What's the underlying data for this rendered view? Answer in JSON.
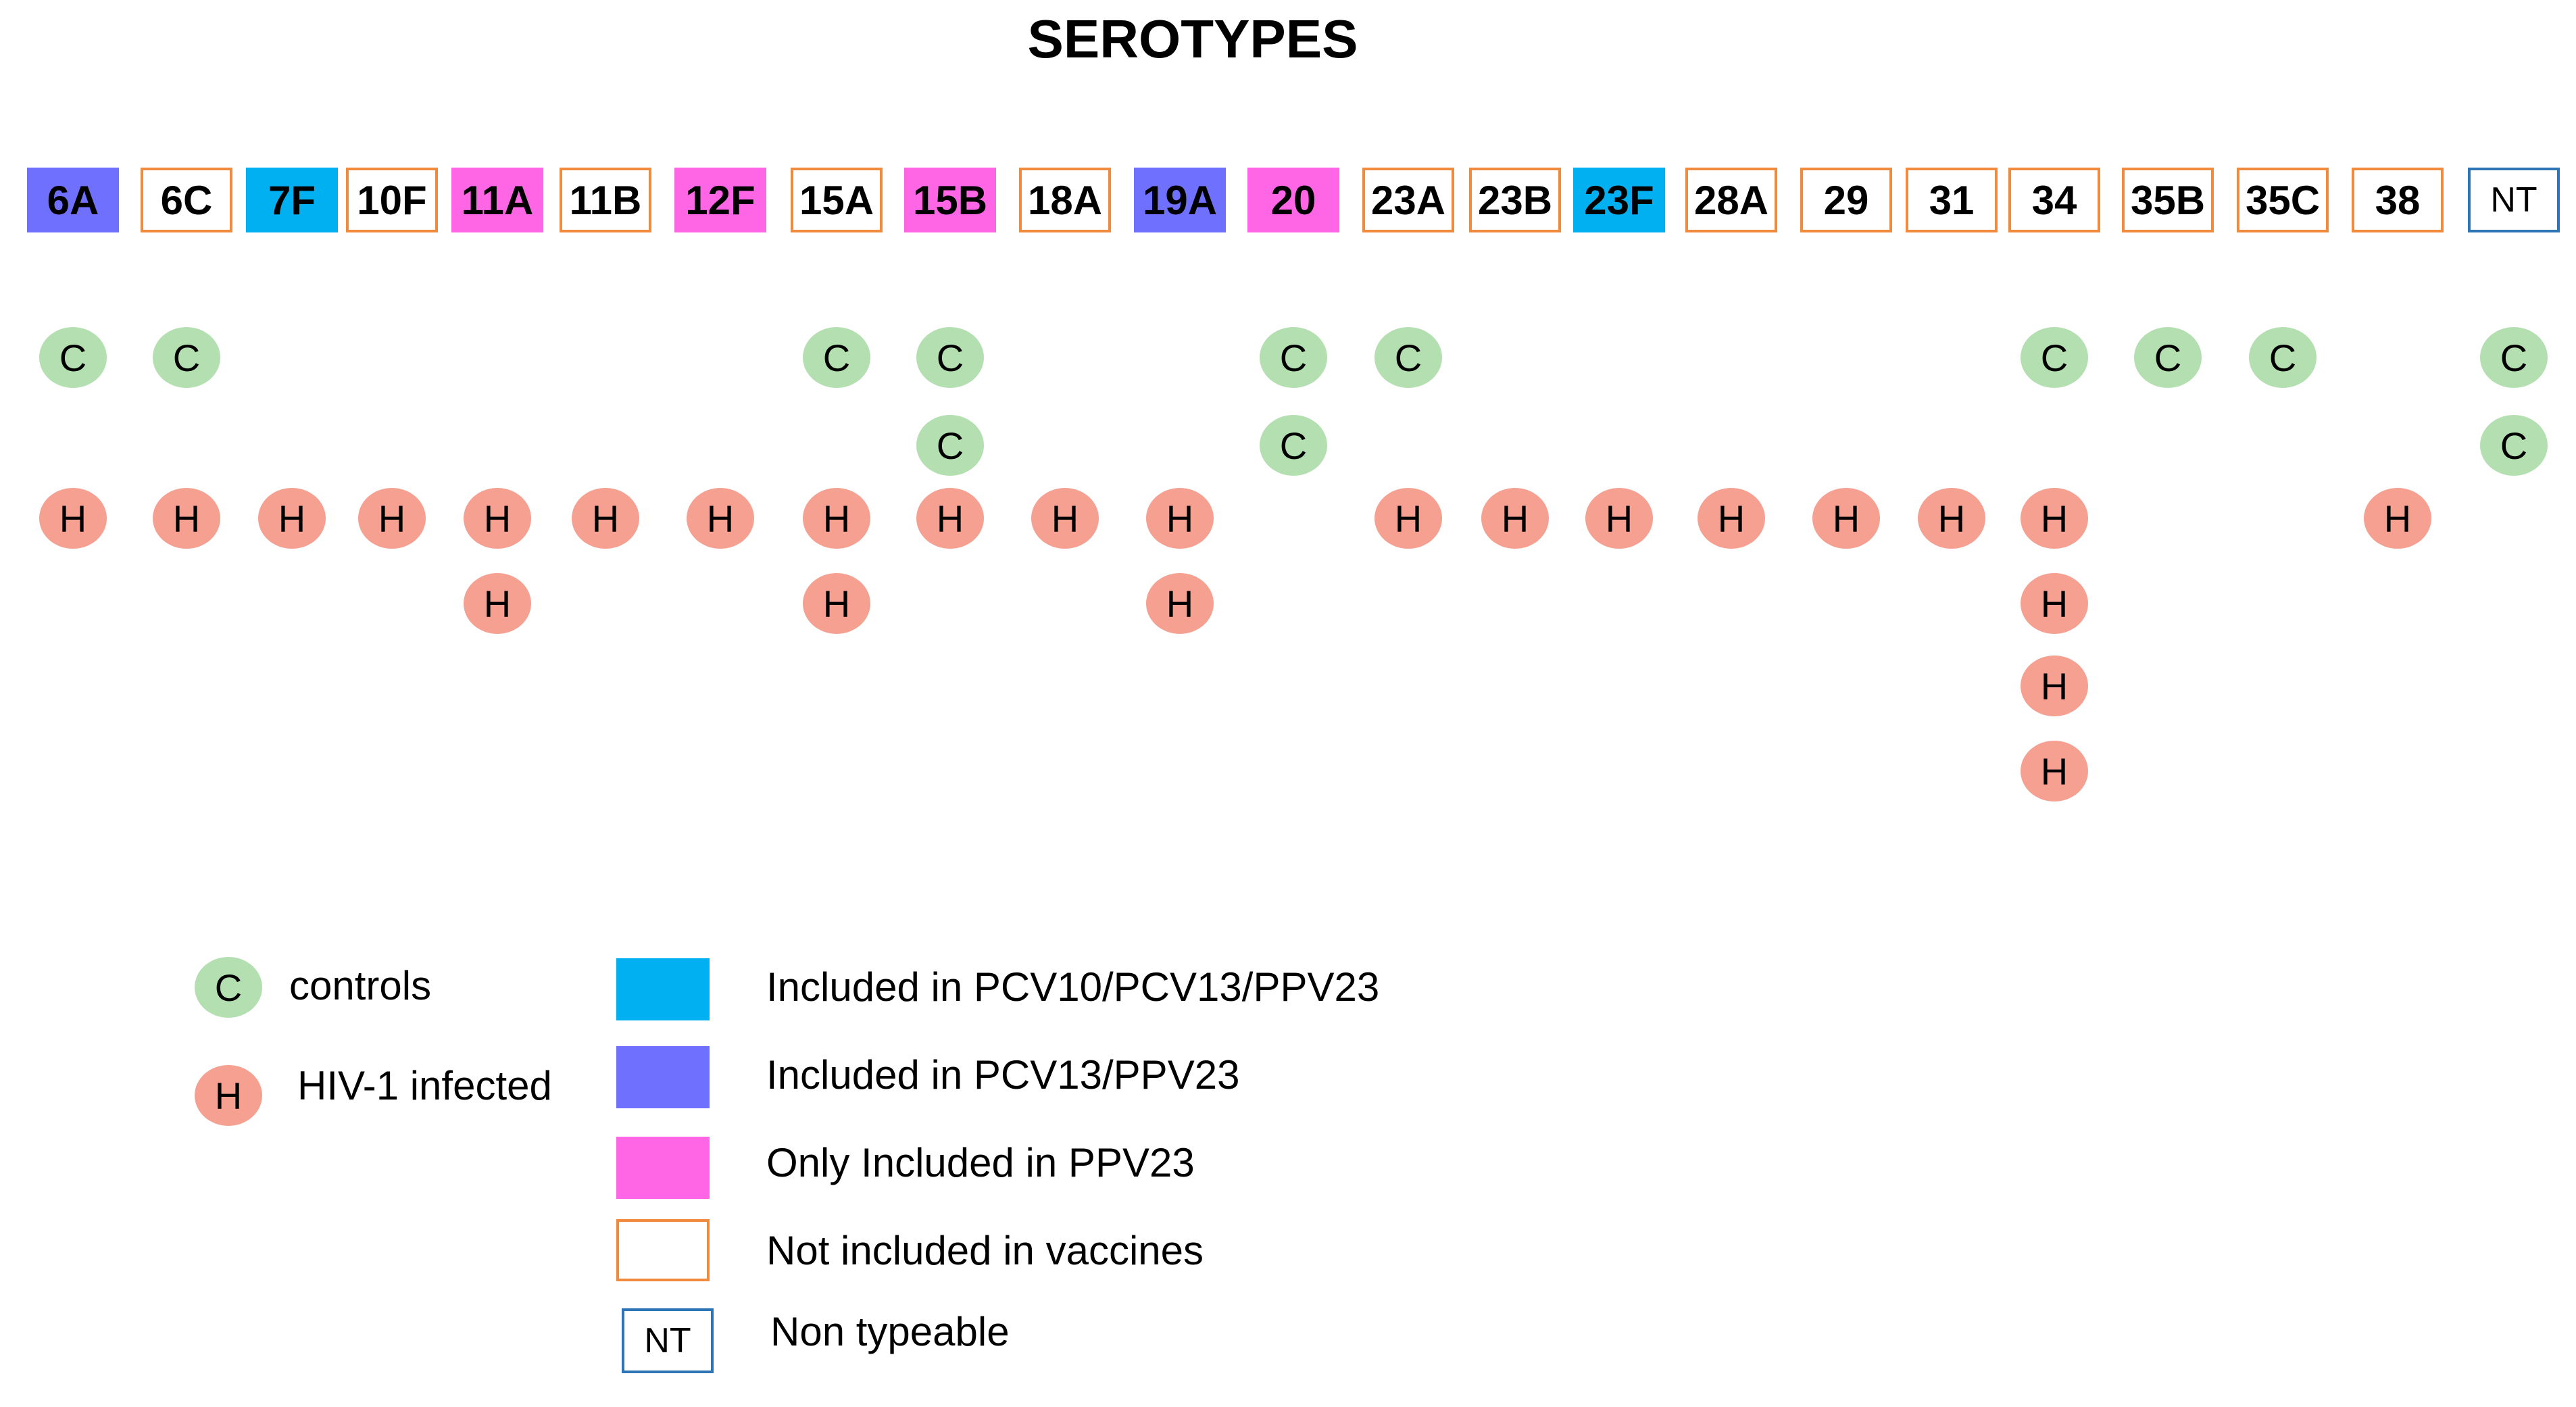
{
  "title": "SEROTYPES",
  "serotypes": [
    {
      "label": "6A",
      "category": "pcv13",
      "controls": 1,
      "hiv": 1
    },
    {
      "label": "6C",
      "category": "none",
      "controls": 1,
      "hiv": 1
    },
    {
      "label": "7F",
      "category": "both",
      "controls": 0,
      "hiv": 1
    },
    {
      "label": "10F",
      "category": "none",
      "controls": 0,
      "hiv": 1
    },
    {
      "label": "11A",
      "category": "ppv",
      "controls": 0,
      "hiv": 2
    },
    {
      "label": "11B",
      "category": "none",
      "controls": 0,
      "hiv": 1
    },
    {
      "label": "12F",
      "category": "ppv",
      "controls": 0,
      "hiv": 1
    },
    {
      "label": "15A",
      "category": "none",
      "controls": 1,
      "hiv": 2
    },
    {
      "label": "15B",
      "category": "ppv",
      "controls": 2,
      "hiv": 1
    },
    {
      "label": "18A",
      "category": "none",
      "controls": 0,
      "hiv": 1
    },
    {
      "label": "19A",
      "category": "pcv13",
      "controls": 0,
      "hiv": 2
    },
    {
      "label": "20",
      "category": "ppv",
      "controls": 2,
      "hiv": 0
    },
    {
      "label": "23A",
      "category": "none",
      "controls": 1,
      "hiv": 1
    },
    {
      "label": "23B",
      "category": "none",
      "controls": 0,
      "hiv": 1
    },
    {
      "label": "23F",
      "category": "both",
      "controls": 0,
      "hiv": 1
    },
    {
      "label": "28A",
      "category": "none",
      "controls": 0,
      "hiv": 1
    },
    {
      "label": "29",
      "category": "none",
      "controls": 0,
      "hiv": 1
    },
    {
      "label": "31",
      "category": "none",
      "controls": 0,
      "hiv": 1
    },
    {
      "label": "34",
      "category": "none",
      "controls": 1,
      "hiv": 4
    },
    {
      "label": "35B",
      "category": "none",
      "controls": 1,
      "hiv": 0
    },
    {
      "label": "35C",
      "category": "none",
      "controls": 1,
      "hiv": 0
    },
    {
      "label": "38",
      "category": "none",
      "controls": 0,
      "hiv": 1
    },
    {
      "label": "NT",
      "category": "nt",
      "controls": 2,
      "hiv": 0
    }
  ],
  "markers": {
    "control_letter": "C",
    "hiv_letter": "H"
  },
  "legend": {
    "controls_label": "controls",
    "hiv_label": "HIV-1 infected",
    "both_label": "Included in PCV10/PCV13/PPV23",
    "pcv13_label": "Included in PCV13/PPV23",
    "ppv_label": "Only Included in PPV23",
    "none_label": "Not included in vaccines",
    "nt_box": "NT",
    "nt_label": "Non typeable"
  },
  "colors": {
    "both": "#00b0f0",
    "pcv13": "#7070ff",
    "ppv": "#ff66e6",
    "none_border": "#f08a3c",
    "nt_border": "#2e75b6",
    "control_dot": "#b4dfb0",
    "hiv_dot": "#f5a091"
  }
}
